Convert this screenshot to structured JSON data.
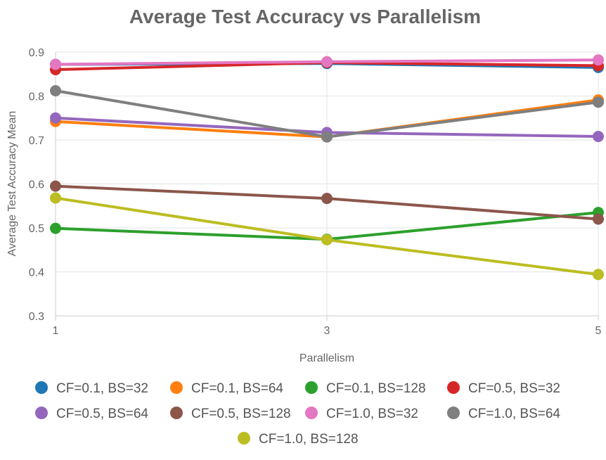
{
  "chart_data": {
    "type": "line",
    "title": "Average Test Accuracy vs Parallelism",
    "xlabel": "Parallelism",
    "ylabel": "Average Test Accuracy Mean",
    "x": [
      1,
      3,
      5
    ],
    "xticks": [
      "1",
      "3",
      "5"
    ],
    "ylim": [
      0.3,
      0.9
    ],
    "yticks": [
      "0.3",
      "0.4",
      "0.5",
      "0.6",
      "0.7",
      "0.8",
      "0.9"
    ],
    "grid": true,
    "legend_position": "bottom",
    "series": [
      {
        "name": "CF=0.1, BS=32",
        "color": "#1f77b4",
        "values": [
          0.872,
          0.874,
          0.865
        ]
      },
      {
        "name": "CF=0.1, BS=64",
        "color": "#ff7f0e",
        "values": [
          0.742,
          0.707,
          0.791
        ]
      },
      {
        "name": "CF=0.1, BS=128",
        "color": "#2ca02c",
        "values": [
          0.499,
          0.474,
          0.535
        ]
      },
      {
        "name": "CF=0.5, BS=32",
        "color": "#d62728",
        "values": [
          0.86,
          0.876,
          0.869
        ]
      },
      {
        "name": "CF=0.5, BS=64",
        "color": "#9467bd",
        "values": [
          0.75,
          0.717,
          0.708
        ]
      },
      {
        "name": "CF=0.5, BS=128",
        "color": "#8c564b",
        "values": [
          0.595,
          0.567,
          0.52
        ]
      },
      {
        "name": "CF=1.0, BS=32",
        "color": "#e377c2",
        "values": [
          0.872,
          0.878,
          0.882
        ]
      },
      {
        "name": "CF=1.0, BS=64",
        "color": "#7f7f7f",
        "values": [
          0.812,
          0.707,
          0.786
        ]
      },
      {
        "name": "CF=1.0, BS=128",
        "color": "#bcbd22",
        "values": [
          0.568,
          0.473,
          0.394
        ]
      }
    ]
  }
}
